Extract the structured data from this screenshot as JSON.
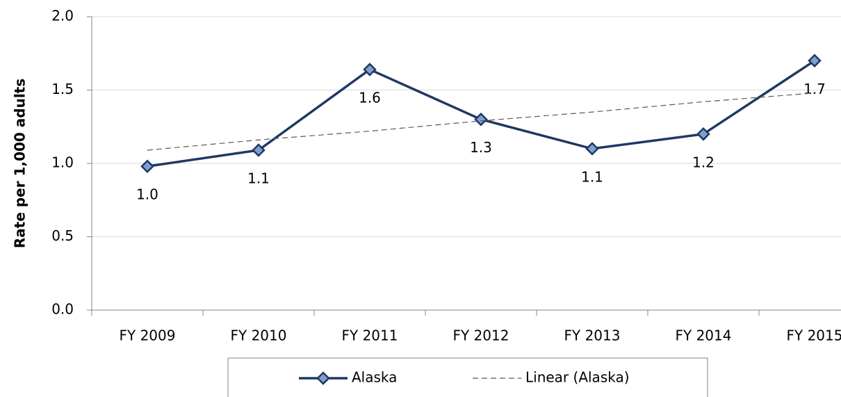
{
  "chart_data": {
    "type": "line",
    "y_label": "Rate per 1,000 adults",
    "categories": [
      "FY 2009",
      "FY 2010",
      "FY 2011",
      "FY 2012",
      "FY 2013",
      "FY 2014",
      "FY 2015"
    ],
    "series": [
      {
        "name": "Alaska",
        "color": "#1f3864",
        "marker_color": "#7f9fd0",
        "marker": "diamond",
        "values": [
          0.98,
          1.09,
          1.64,
          1.3,
          1.1,
          1.2,
          1.7
        ],
        "value_labels": [
          "1.0",
          "1.1",
          "1.6",
          "1.3",
          "1.1",
          "1.2",
          "1.7"
        ]
      },
      {
        "name": "Linear (Alaska)",
        "color": "#595959",
        "dashed": true,
        "values": [
          1.09,
          1.16,
          1.22,
          1.29,
          1.35,
          1.42,
          1.48
        ]
      }
    ],
    "ylim": [
      0,
      2
    ],
    "yticks": [
      {
        "value": 0,
        "label": "0.0"
      },
      0.5,
      {
        "value": 1,
        "label": "1.0"
      },
      1.5,
      {
        "value": 2,
        "label": "2.0"
      }
    ],
    "grid": true,
    "legend": "bottom"
  }
}
